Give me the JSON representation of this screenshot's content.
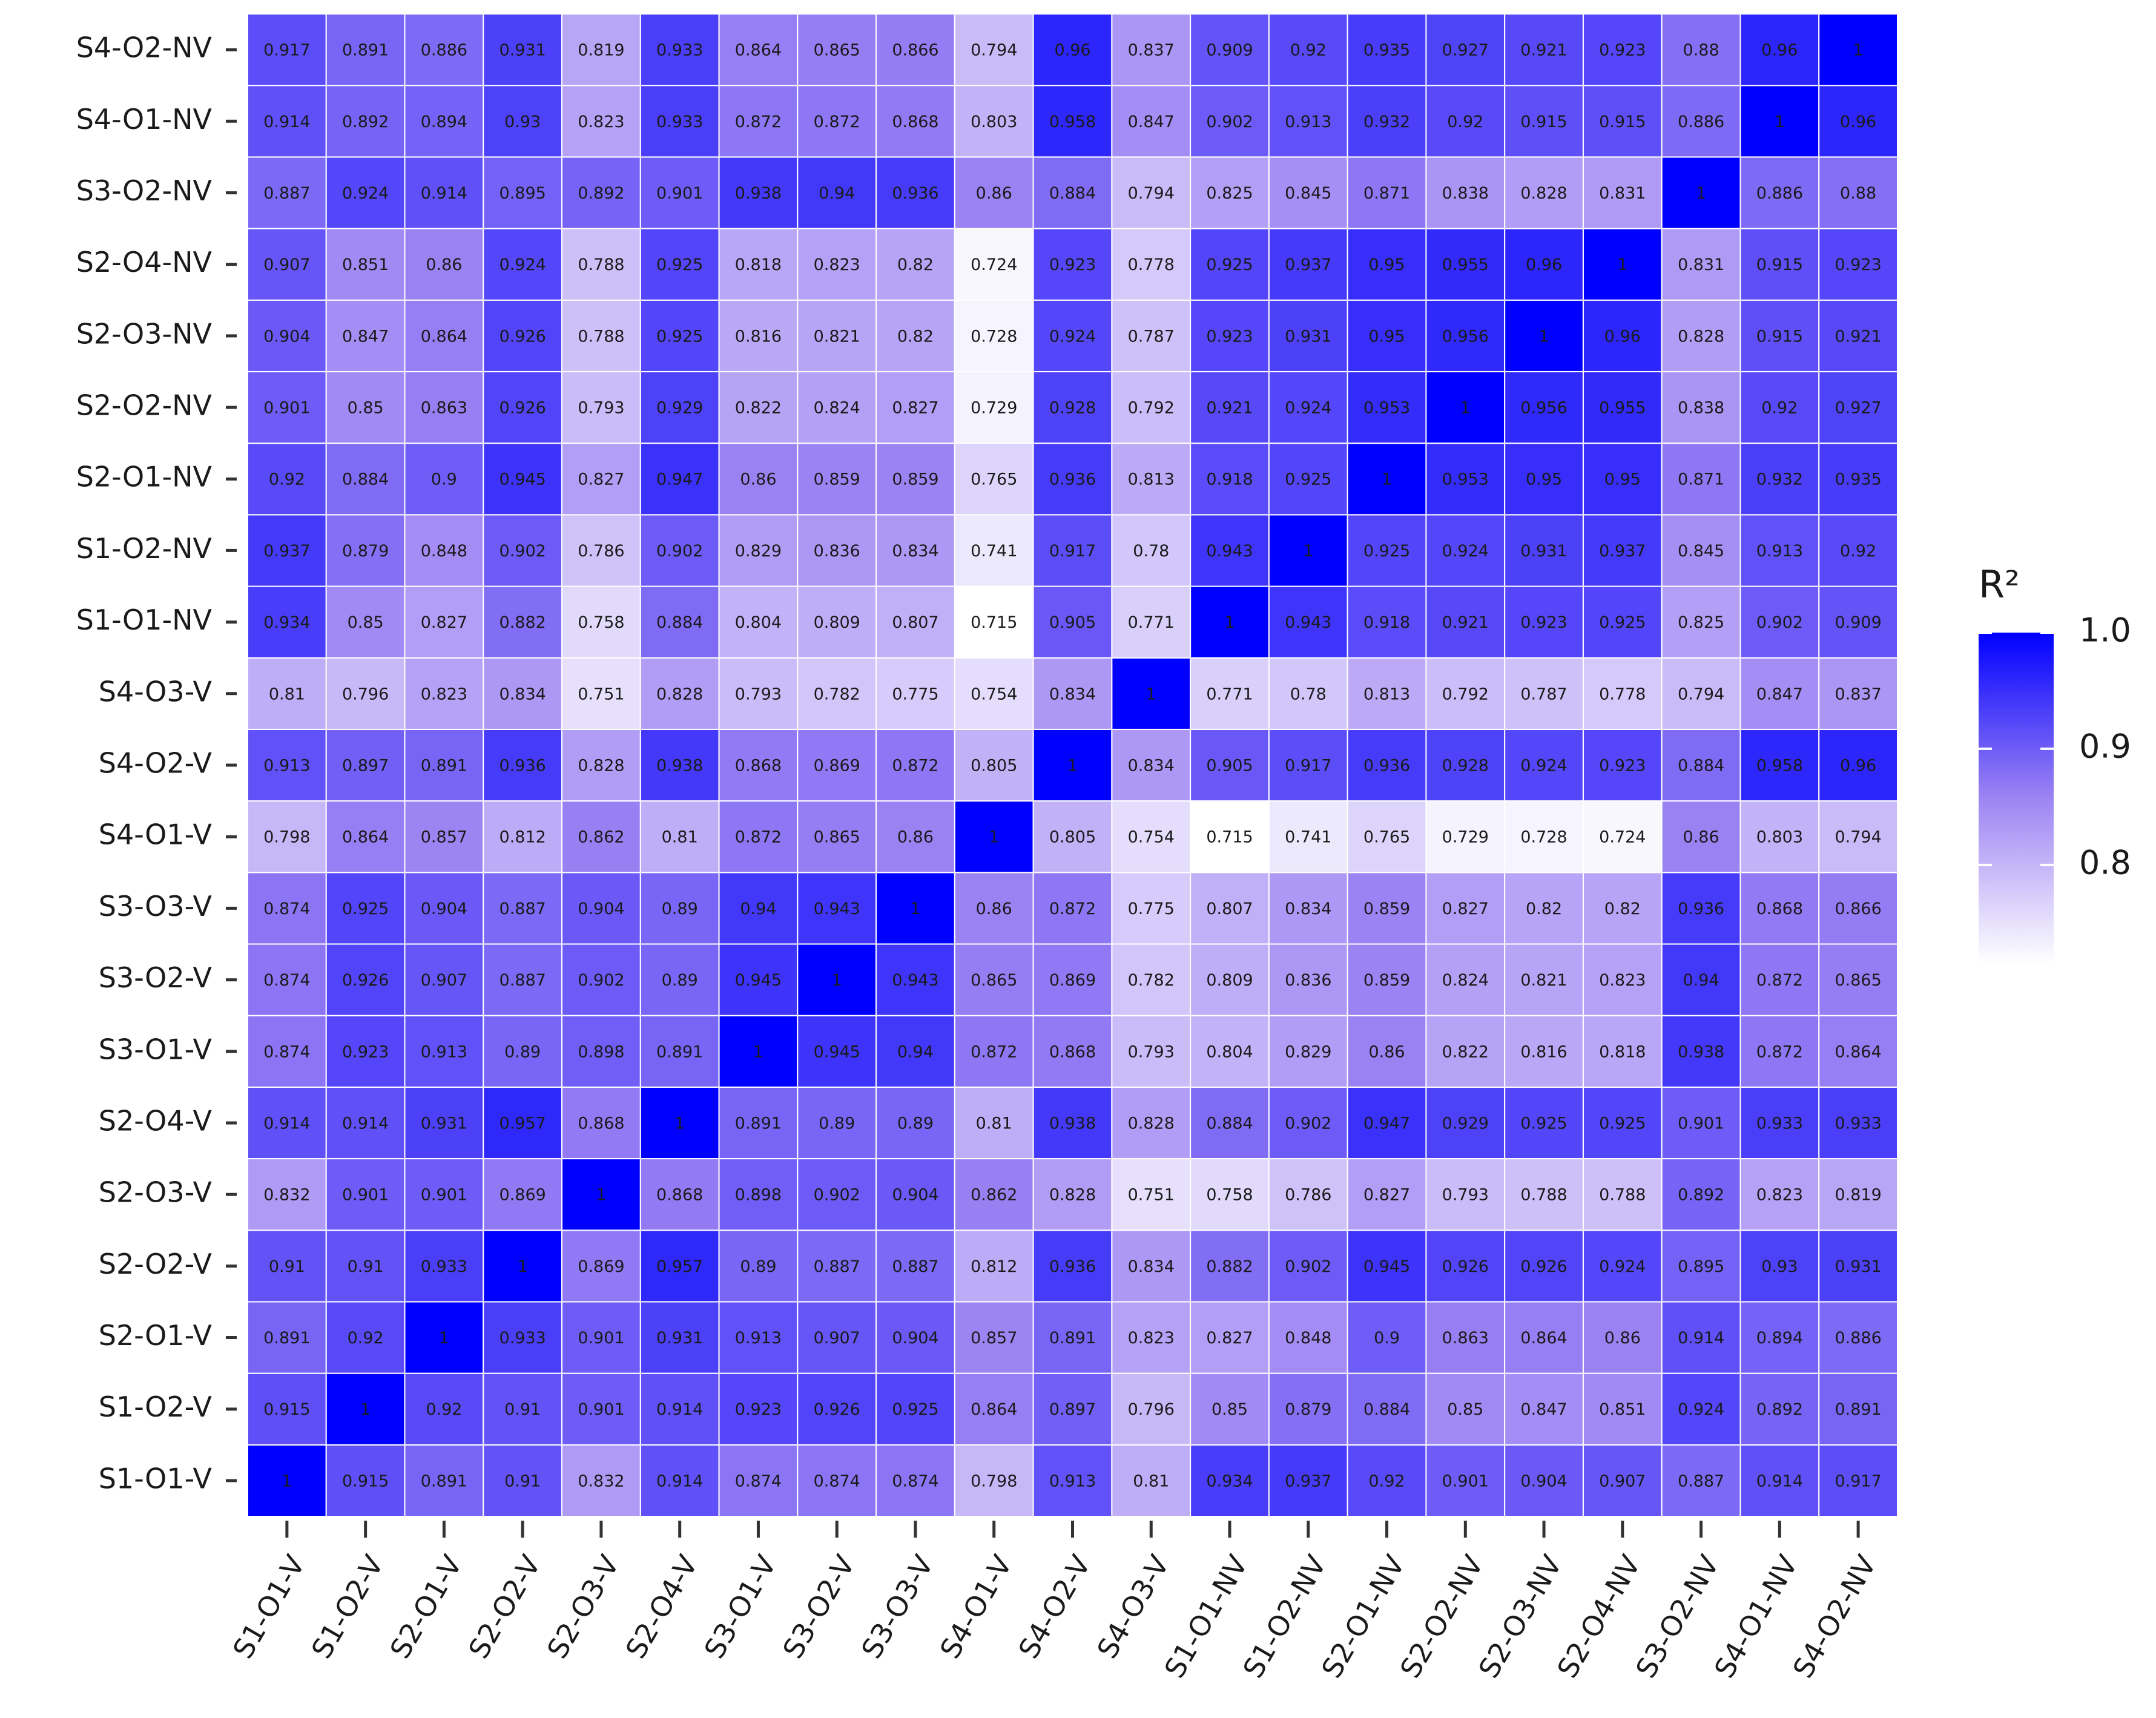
{
  "chart_data": {
    "type": "heatmap",
    "colorbar_title": "R²",
    "x_categories": [
      "S1-O1-V",
      "S1-O2-V",
      "S2-O1-V",
      "S2-O2-V",
      "S2-O3-V",
      "S2-O4-V",
      "S3-O1-V",
      "S3-O2-V",
      "S3-O3-V",
      "S4-O1-V",
      "S4-O2-V",
      "S4-O3-V",
      "S1-O1-NV",
      "S1-O2-NV",
      "S2-O1-NV",
      "S2-O2-NV",
      "S2-O3-NV",
      "S2-O4-NV",
      "S3-O2-NV",
      "S4-O1-NV",
      "S4-O2-NV"
    ],
    "y_categories": [
      "S1-O1-V",
      "S1-O2-V",
      "S2-O1-V",
      "S2-O2-V",
      "S2-O3-V",
      "S2-O4-V",
      "S3-O1-V",
      "S3-O2-V",
      "S3-O3-V",
      "S4-O1-V",
      "S4-O2-V",
      "S4-O3-V",
      "S1-O1-NV",
      "S1-O2-NV",
      "S2-O1-NV",
      "S2-O2-NV",
      "S2-O3-NV",
      "S2-O4-NV",
      "S3-O2-NV",
      "S4-O1-NV",
      "S4-O2-NV"
    ],
    "values": [
      [
        1,
        0.915,
        0.891,
        0.91,
        0.832,
        0.914,
        0.874,
        0.874,
        0.874,
        0.798,
        0.913,
        0.81,
        0.934,
        0.937,
        0.92,
        0.901,
        0.904,
        0.907,
        0.887,
        0.914,
        0.917
      ],
      [
        0.915,
        1,
        0.92,
        0.91,
        0.901,
        0.914,
        0.923,
        0.926,
        0.925,
        0.864,
        0.897,
        0.796,
        0.85,
        0.879,
        0.884,
        0.85,
        0.847,
        0.851,
        0.924,
        0.892,
        0.891
      ],
      [
        0.891,
        0.92,
        1,
        0.933,
        0.901,
        0.931,
        0.913,
        0.907,
        0.904,
        0.857,
        0.891,
        0.823,
        0.827,
        0.848,
        0.9,
        0.863,
        0.864,
        0.86,
        0.914,
        0.894,
        0.886
      ],
      [
        0.91,
        0.91,
        0.933,
        1,
        0.869,
        0.957,
        0.89,
        0.887,
        0.887,
        0.812,
        0.936,
        0.834,
        0.882,
        0.902,
        0.945,
        0.926,
        0.926,
        0.924,
        0.895,
        0.93,
        0.931
      ],
      [
        0.832,
        0.901,
        0.901,
        0.869,
        1,
        0.868,
        0.898,
        0.902,
        0.904,
        0.862,
        0.828,
        0.751,
        0.758,
        0.786,
        0.827,
        0.793,
        0.788,
        0.788,
        0.892,
        0.823,
        0.819
      ],
      [
        0.914,
        0.914,
        0.931,
        0.957,
        0.868,
        1,
        0.891,
        0.89,
        0.89,
        0.81,
        0.938,
        0.828,
        0.884,
        0.902,
        0.947,
        0.929,
        0.925,
        0.925,
        0.901,
        0.933,
        0.933
      ],
      [
        0.874,
        0.923,
        0.913,
        0.89,
        0.898,
        0.891,
        1,
        0.945,
        0.94,
        0.872,
        0.868,
        0.793,
        0.804,
        0.829,
        0.86,
        0.822,
        0.816,
        0.818,
        0.938,
        0.872,
        0.864
      ],
      [
        0.874,
        0.926,
        0.907,
        0.887,
        0.902,
        0.89,
        0.945,
        1,
        0.943,
        0.865,
        0.869,
        0.782,
        0.809,
        0.836,
        0.859,
        0.824,
        0.821,
        0.823,
        0.94,
        0.872,
        0.865
      ],
      [
        0.874,
        0.925,
        0.904,
        0.887,
        0.904,
        0.89,
        0.94,
        0.943,
        1,
        0.86,
        0.872,
        0.775,
        0.807,
        0.834,
        0.859,
        0.827,
        0.82,
        0.82,
        0.936,
        0.868,
        0.866
      ],
      [
        0.798,
        0.864,
        0.857,
        0.812,
        0.862,
        0.81,
        0.872,
        0.865,
        0.86,
        1,
        0.805,
        0.754,
        0.715,
        0.741,
        0.765,
        0.729,
        0.728,
        0.724,
        0.86,
        0.803,
        0.794
      ],
      [
        0.913,
        0.897,
        0.891,
        0.936,
        0.828,
        0.938,
        0.868,
        0.869,
        0.872,
        0.805,
        1,
        0.834,
        0.905,
        0.917,
        0.936,
        0.928,
        0.924,
        0.923,
        0.884,
        0.958,
        0.96
      ],
      [
        0.81,
        0.796,
        0.823,
        0.834,
        0.751,
        0.828,
        0.793,
        0.782,
        0.775,
        0.754,
        0.834,
        1,
        0.771,
        0.78,
        0.813,
        0.792,
        0.787,
        0.778,
        0.794,
        0.847,
        0.837
      ],
      [
        0.934,
        0.85,
        0.827,
        0.882,
        0.758,
        0.884,
        0.804,
        0.809,
        0.807,
        0.715,
        0.905,
        0.771,
        1,
        0.943,
        0.918,
        0.921,
        0.923,
        0.925,
        0.825,
        0.902,
        0.909
      ],
      [
        0.937,
        0.879,
        0.848,
        0.902,
        0.786,
        0.902,
        0.829,
        0.836,
        0.834,
        0.741,
        0.917,
        0.78,
        0.943,
        1,
        0.925,
        0.924,
        0.931,
        0.937,
        0.845,
        0.913,
        0.92
      ],
      [
        0.92,
        0.884,
        0.9,
        0.945,
        0.827,
        0.947,
        0.86,
        0.859,
        0.859,
        0.765,
        0.936,
        0.813,
        0.918,
        0.925,
        1,
        0.953,
        0.95,
        0.95,
        0.871,
        0.932,
        0.935
      ],
      [
        0.901,
        0.85,
        0.863,
        0.926,
        0.793,
        0.929,
        0.822,
        0.824,
        0.827,
        0.729,
        0.928,
        0.792,
        0.921,
        0.924,
        0.953,
        1,
        0.956,
        0.955,
        0.838,
        0.92,
        0.927
      ],
      [
        0.904,
        0.847,
        0.864,
        0.926,
        0.788,
        0.925,
        0.816,
        0.821,
        0.82,
        0.728,
        0.924,
        0.787,
        0.923,
        0.931,
        0.95,
        0.956,
        1,
        0.96,
        0.828,
        0.915,
        0.921
      ],
      [
        0.907,
        0.851,
        0.86,
        0.924,
        0.788,
        0.925,
        0.818,
        0.823,
        0.82,
        0.724,
        0.923,
        0.778,
        0.925,
        0.937,
        0.95,
        0.955,
        0.96,
        1,
        0.831,
        0.915,
        0.923
      ],
      [
        0.887,
        0.924,
        0.914,
        0.895,
        0.892,
        0.901,
        0.938,
        0.94,
        0.936,
        0.86,
        0.884,
        0.794,
        0.825,
        0.845,
        0.871,
        0.838,
        0.828,
        0.831,
        1,
        0.886,
        0.88
      ],
      [
        0.914,
        0.892,
        0.894,
        0.93,
        0.823,
        0.933,
        0.872,
        0.872,
        0.868,
        0.803,
        0.958,
        0.847,
        0.902,
        0.913,
        0.932,
        0.92,
        0.915,
        0.915,
        0.886,
        1,
        0.96
      ],
      [
        0.917,
        0.891,
        0.886,
        0.931,
        0.819,
        0.933,
        0.864,
        0.865,
        0.866,
        0.794,
        0.96,
        0.837,
        0.909,
        0.92,
        0.935,
        0.927,
        0.921,
        0.923,
        0.88,
        0.96,
        1
      ]
    ],
    "clim": [
      0.715,
      1
    ],
    "cticks": [
      0.8,
      0.9,
      {
        "value": 1,
        "label": "1.0"
      }
    ],
    "colorscale": [
      "#ffffff",
      "#9d84f3",
      "#0000ff"
    ]
  }
}
